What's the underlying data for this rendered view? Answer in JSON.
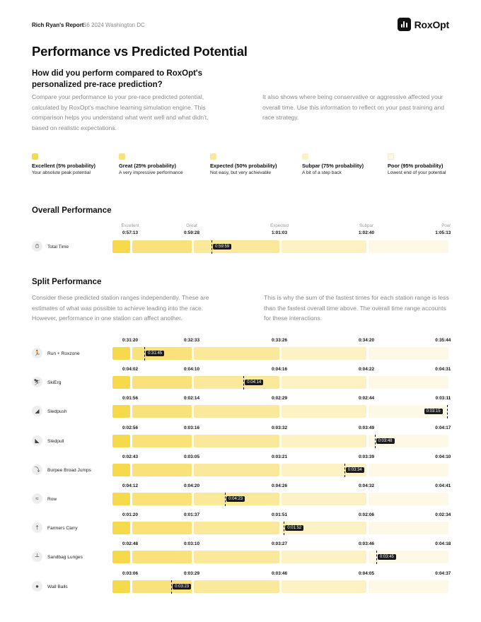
{
  "header": {
    "report_name": "Rich Ryan's Report",
    "event_name": "S6 2024 Washington DC"
  },
  "brand": {
    "name": "RoxOpt"
  },
  "page": {
    "title": "Performance vs Predicted Potential",
    "subtitle": "How did you perform compared to RoxOpt's personalized pre-race prediction?",
    "intro_left": "Compare your performance to your pre-race predicted potential, calculated by RoxOpt's machine learning simulation engine. This comparison helps you understand what went well and what didn't, based on realistic expectations.",
    "intro_right": "It also shows where being conservative or aggressive affected your overall time. Use this information to reflect on your past training and race strategy."
  },
  "colors": {
    "excellent": "#F7D94C",
    "great": "#F9E27A",
    "expected": "#FAE99B",
    "subpar": "#FCF2C4",
    "poor": "#FEF9E7"
  },
  "legend": [
    {
      "title": "Excellent (5% probability)",
      "desc": "Your absolute peak potential"
    },
    {
      "title": "Great (25% probability)",
      "desc": "A very impressive performance"
    },
    {
      "title": "Expected (50% probability)",
      "desc": "Not easy, but very achievable"
    },
    {
      "title": "Subpar (75% probability)",
      "desc": "A bit of a step back"
    },
    {
      "title": "Poor (95% probability)",
      "desc": "Lowest end of your potential"
    }
  ],
  "overall": {
    "section_title": "Overall Performance",
    "tier_labels": [
      "Excellent",
      "Great",
      "Expected",
      "Subpar",
      "Poor"
    ],
    "times": [
      "0:57:13",
      "0:59:28",
      "1:01:03",
      "1:02:40",
      "1:05:13"
    ],
    "row_name": "Total Time",
    "actual": "0:59:59",
    "actual_fraction": 0.295
  },
  "split": {
    "section_title": "Split Performance",
    "text_left": "Consider these predicted station ranges independently. These are estimates of what was possible to achieve leading into the race. However, performance in one station can affect another.",
    "text_right": "This is why the sum of the fastest times for each station range is less than the fastest overall time above. The overall time range accounts for these interactions.",
    "stations": [
      {
        "name": "Run + Roxzone",
        "icon": "runner-icon",
        "times": [
          "0:31:20",
          "0:32:33",
          "0:33:26",
          "0:34:20",
          "0:35:44"
        ],
        "actual": "0:31:45",
        "actual_fraction": 0.095
      },
      {
        "name": "SkiErg",
        "icon": "skierg-icon",
        "times": [
          "0:04:02",
          "0:04:10",
          "0:04:16",
          "0:04:22",
          "0:04:31"
        ],
        "actual": "0:04:14",
        "actual_fraction": 0.39
      },
      {
        "name": "Sledpush",
        "icon": "sledpush-icon",
        "times": [
          "0:01:56",
          "0:02:14",
          "0:02:29",
          "0:02:44",
          "0:03:11"
        ],
        "actual": "0:03:15",
        "actual_fraction": 0.995
      },
      {
        "name": "Sledpull",
        "icon": "sledpull-icon",
        "times": [
          "0:02:56",
          "0:03:16",
          "0:03:32",
          "0:03:49",
          "0:04:17"
        ],
        "actual": "0:03:48",
        "actual_fraction": 0.78
      },
      {
        "name": "Burpee Broad Jumps",
        "icon": "burpee-icon",
        "times": [
          "0:02:43",
          "0:03:05",
          "0:03:21",
          "0:03:39",
          "0:04:10"
        ],
        "actual": "0:03:34",
        "actual_fraction": 0.69
      },
      {
        "name": "Row",
        "icon": "row-icon",
        "times": [
          "0:04:12",
          "0:04:20",
          "0:04:26",
          "0:04:32",
          "0:04:41"
        ],
        "actual": "0:04:23",
        "actual_fraction": 0.335
      },
      {
        "name": "Farmers Carry",
        "icon": "farmers-carry-icon",
        "times": [
          "0:01:20",
          "0:01:37",
          "0:01:51",
          "0:02:06",
          "0:02:34"
        ],
        "actual": "0:01:52",
        "actual_fraction": 0.51
      },
      {
        "name": "Sandbag Lunges",
        "icon": "lunge-icon",
        "times": [
          "0:02:48",
          "0:03:10",
          "0:03:27",
          "0:03:46",
          "0:04:18"
        ],
        "actual": "0:03:45",
        "actual_fraction": 0.785
      },
      {
        "name": "Wall Balls",
        "icon": "wall-ball-icon",
        "times": [
          "0:03:06",
          "0:03:29",
          "0:03:46",
          "0:04:05",
          "0:04:37"
        ],
        "actual": "0:03:23",
        "actual_fraction": 0.175
      }
    ]
  }
}
